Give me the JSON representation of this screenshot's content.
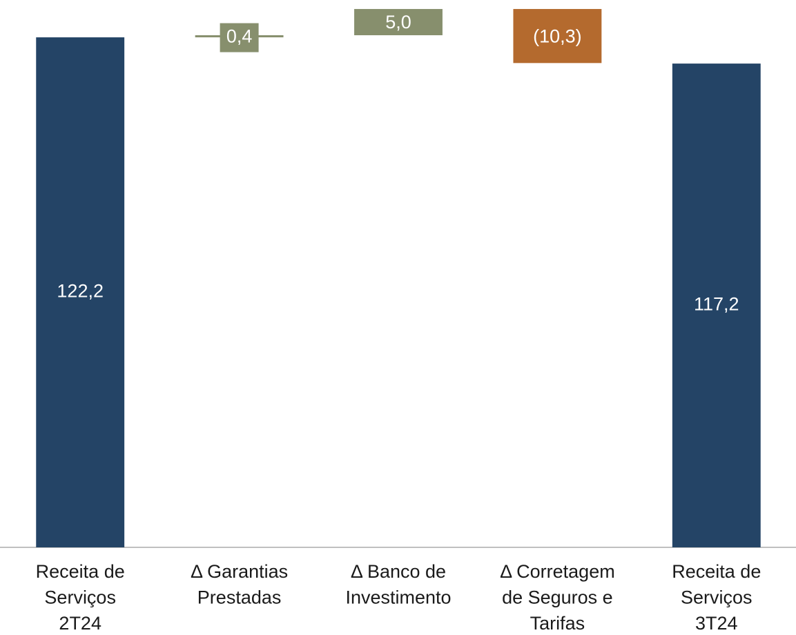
{
  "chart_data": {
    "type": "waterfall",
    "categories": [
      [
        "Receita de",
        "Serviços",
        "2T24"
      ],
      [
        "Δ Garantias",
        "Prestadas"
      ],
      [
        "Δ Banco de",
        "Investimento"
      ],
      [
        "Δ Corretagem",
        "de Seguros e",
        "Tarifas"
      ],
      [
        "Receita de",
        "Serviços",
        "3T24"
      ]
    ],
    "values": [
      122.2,
      0.4,
      5.0,
      -10.3,
      117.2
    ],
    "value_labels": [
      "122,2",
      "0,4",
      "5,0",
      "(10,3)",
      "117,2"
    ],
    "measures": [
      "total",
      "relative",
      "relative",
      "relative",
      "total"
    ],
    "colors": {
      "total": "#244466",
      "increase": "#878f6d",
      "decrease": "#b46a2e"
    },
    "ylim": [
      25,
      128
    ]
  }
}
